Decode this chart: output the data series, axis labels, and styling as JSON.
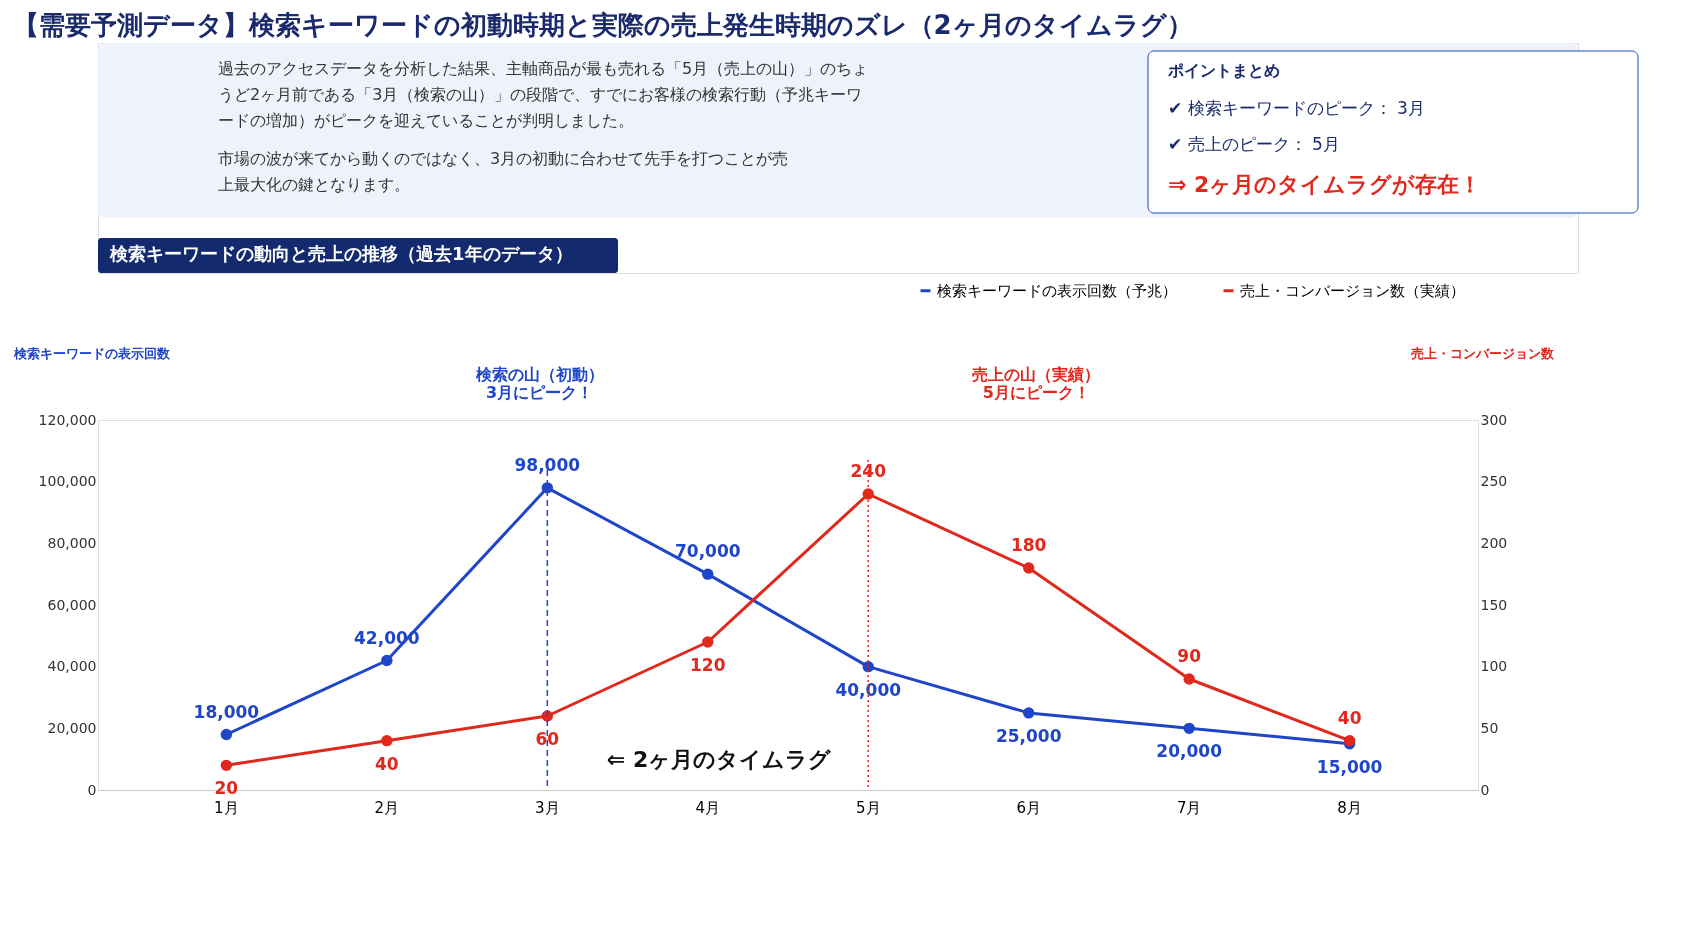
{
  "chart_data": {
    "type": "line",
    "title": "【需要予測データ】検索キーワードの初動時期と実際の売上発生時期のズレ（2ヶ月のタイムラグ）",
    "subtitle": "検索キーワードの動向と売上の推移（過去1年のデータ）",
    "ylabel": "検索キーワードの表示回数",
    "y2label": "売上・コンバージョン数",
    "categories": [
      "1月",
      "2月",
      "3月",
      "4月",
      "5月",
      "6月",
      "7月",
      "8月"
    ],
    "series": [
      {
        "name": "検索キーワードの表示回数（予兆）",
        "color": "#1f45c9",
        "values": [
          18000,
          42000,
          98000,
          70000,
          40000,
          25000,
          20000,
          15000
        ],
        "value_labels": [
          "18,000",
          "42,000",
          "98,000",
          "70,000",
          "40,000",
          "25,000",
          "20,000",
          "15,000"
        ]
      },
      {
        "name": "売上・コンバージョン数（実績）",
        "color": "#e0281c",
        "axis": "y2",
        "values": [
          20,
          40,
          60,
          120,
          240,
          180,
          90,
          40
        ],
        "value_labels": [
          "20",
          "40",
          "60",
          "120",
          "240",
          "180",
          "90",
          "40"
        ]
      }
    ],
    "ylim": [
      0,
      120000
    ],
    "yticks": [
      0,
      {
        "value": 20000,
        "label": "20,000"
      },
      {
        "value": 40000,
        "label": "40,000"
      },
      {
        "value": 60000,
        "label": "60,000"
      },
      {
        "value": 80000,
        "label": "80,000"
      },
      {
        "value": 100000,
        "label": "100,000"
      },
      {
        "value": 120000,
        "label": "120,000"
      }
    ],
    "y2lim": [
      0,
      300
    ],
    "y2ticks": [
      0,
      50,
      100,
      150,
      200,
      250,
      300
    ],
    "ref_lines": [
      {
        "axis": "x",
        "value": "3月",
        "color": "#1f45c9",
        "line_style": "dashed"
      },
      {
        "axis": "x",
        "value": "5月",
        "color": "#e0281c",
        "line_style": "dotted"
      }
    ],
    "annotations": [
      "過去のアクセスデータを分析した結果、主軸商品が最も売れる「5月（売上の山）」のちょうど2ヶ月前である「3月（検索の山）」の段階で、すでにお客様の検索行動（予兆キーワードの増加）がピークを迎えていることが判明しました。",
      "市場の波が来てから動くのではなく、3月の初動に合わせて先手を打つことが売上最大化の鍵となります。",
      "ポイントまとめ",
      "✔ 検索キーワードのピーク：  3月",
      "✔ 売上のピーク：  5月",
      "⇒ 2ヶ月のタイムラグが存在！",
      "検索の山（初動）\n3月にピーク！",
      "売上の山（実績）\n5月にピーク！",
      "⇐ 2ヶ月のタイムラグ"
    ],
    "marker": "circle",
    "line_style": "solid",
    "grid": false,
    "legend": "top right"
  }
}
